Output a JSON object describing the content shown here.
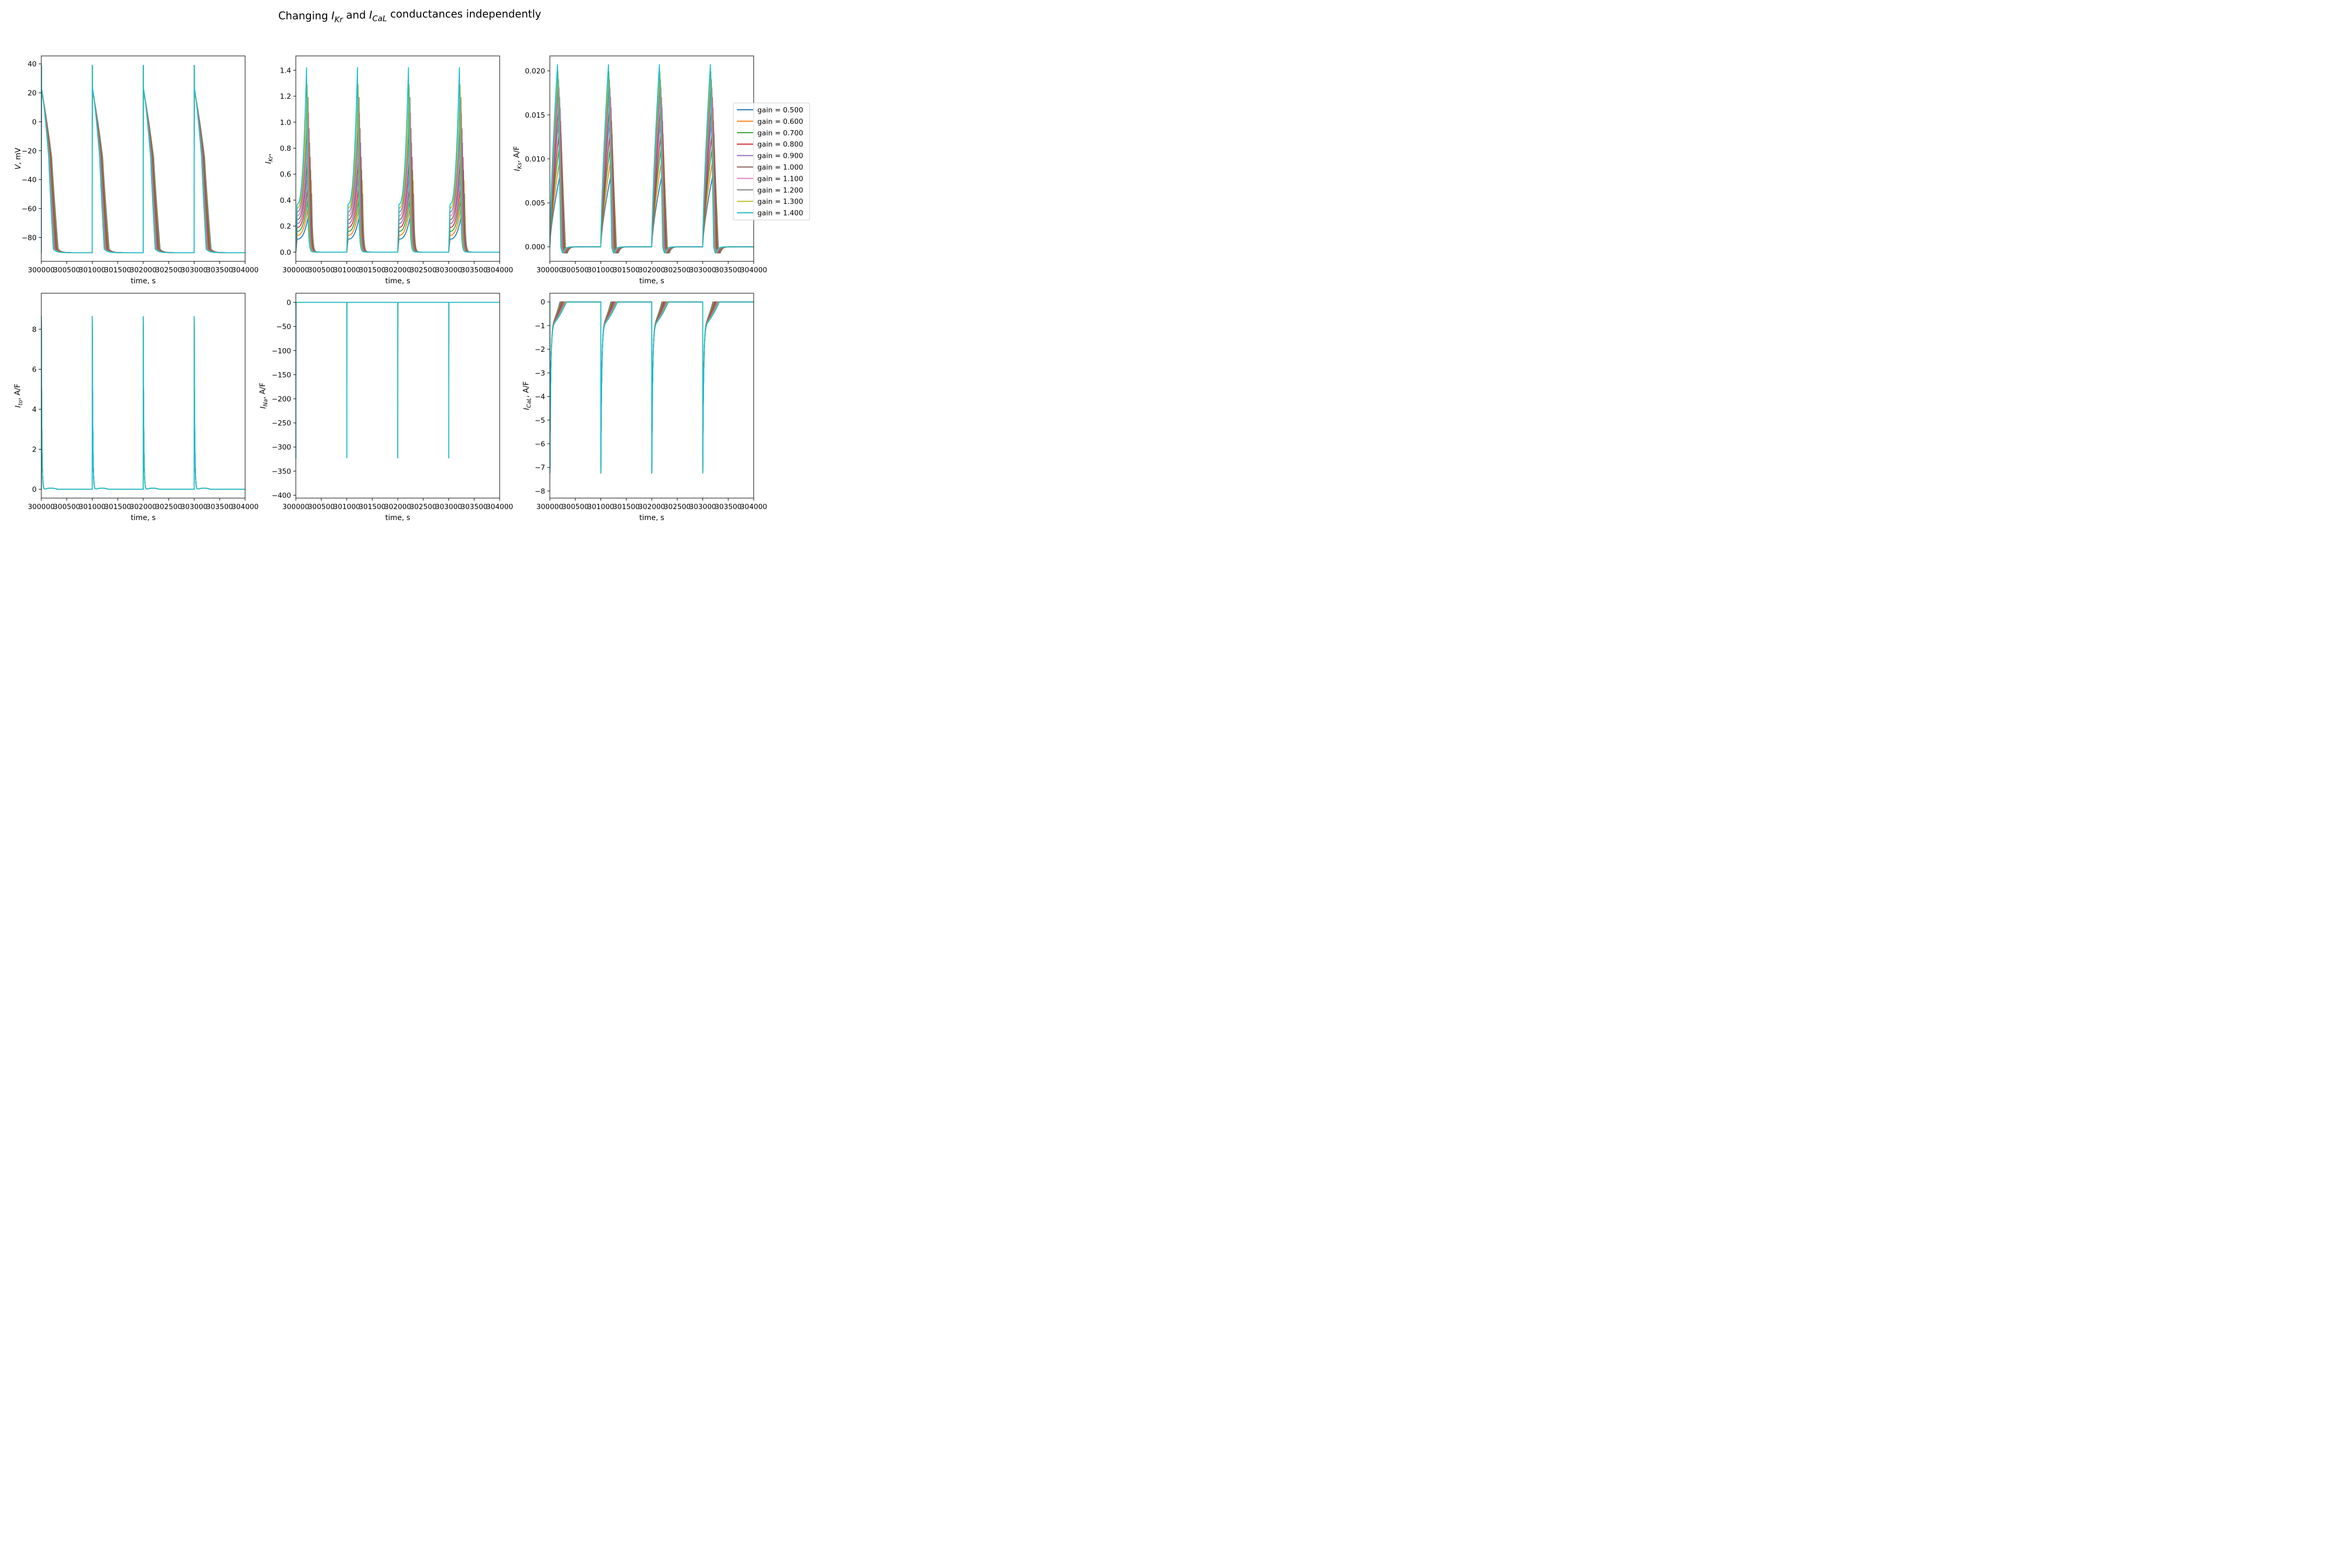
{
  "figure": {
    "title_parts": [
      "Changing ",
      "I",
      "Kr",
      " and ",
      "I",
      "CaL",
      " conductances independently"
    ]
  },
  "legend": {
    "entries": [
      "gain = 0.500",
      "gain = 0.600",
      "gain = 0.700",
      "gain = 0.800",
      "gain = 0.900",
      "gain = 1.000",
      "gain = 1.100",
      "gain = 1.200",
      "gain = 1.300",
      "gain = 1.400"
    ],
    "colors": [
      "#1f77b4",
      "#ff7f0e",
      "#2ca02c",
      "#d62728",
      "#9467bd",
      "#8c564b",
      "#e377c2",
      "#7f7f7f",
      "#bcbd22",
      "#17becf"
    ],
    "placement": "right of top-right panel"
  },
  "chart_data": [
    {
      "id": "V",
      "type": "line",
      "xlabel": "time, s",
      "ylabel_parts": [
        "V",
        "",
        ", mV"
      ],
      "xlim": [
        300000,
        304000
      ],
      "ylim": [
        -96.5,
        45.5
      ],
      "xticks": [
        300000,
        300500,
        301000,
        301500,
        302000,
        302500,
        303000,
        303500,
        304000
      ],
      "xtick_labels": [
        "300000",
        "300500",
        "301000",
        "301500",
        "302000",
        "302500",
        "303000",
        "303500",
        "304000"
      ],
      "yticks": [
        40,
        20,
        0,
        -20,
        -40,
        -60,
        -80
      ],
      "ytick_labels": [
        "40",
        "20",
        "0",
        "−20",
        "−40",
        "−60",
        "−80"
      ],
      "model": "ap",
      "series": [
        {
          "name": "gain = 0.500",
          "apd_ms": 330,
          "peak": 20
        },
        {
          "name": "gain = 0.600",
          "apd_ms": 318,
          "peak": 20.4
        },
        {
          "name": "gain = 0.700",
          "apd_ms": 306,
          "peak": 20.8
        },
        {
          "name": "gain = 0.800",
          "apd_ms": 294,
          "peak": 21.2
        },
        {
          "name": "gain = 0.900",
          "apd_ms": 283,
          "peak": 21.6
        },
        {
          "name": "gain = 1.000",
          "apd_ms": 272,
          "peak": 22
        },
        {
          "name": "gain = 1.100",
          "apd_ms": 262,
          "peak": 22.3
        },
        {
          "name": "gain = 1.200",
          "apd_ms": 252,
          "peak": 22.6
        },
        {
          "name": "gain = 1.300",
          "apd_ms": 243,
          "peak": 22.9
        },
        {
          "name": "gain = 1.400",
          "apd_ms": 235,
          "peak": 23
        }
      ],
      "spike_peak": 39,
      "rest": -90.5,
      "beat_starts": [
        300000,
        301000,
        302000,
        303000
      ]
    },
    {
      "id": "IKr",
      "type": "line",
      "xlabel": "time, s",
      "ylabel_parts": [
        "I",
        "Kr",
        ","
      ],
      "xlim": [
        300000,
        304000
      ],
      "ylim": [
        -0.071,
        1.51
      ],
      "xticks": [
        300000,
        300500,
        301000,
        301500,
        302000,
        302500,
        303000,
        303500,
        304000
      ],
      "xtick_labels": [
        "300000",
        "300500",
        "301000",
        "301500",
        "302000",
        "302500",
        "303000",
        "303500",
        "304000"
      ],
      "yticks": [
        0.0,
        0.2,
        0.4,
        0.6,
        0.8,
        1.0,
        1.2,
        1.4
      ],
      "ytick_labels": [
        "0.0",
        "0.2",
        "0.4",
        "0.6",
        "0.8",
        "1.0",
        "1.2",
        "1.4"
      ],
      "model": "ikr",
      "series": [
        {
          "name": "gain = 0.500",
          "peak": 0.45,
          "start": 0.1,
          "t_peak": 300310
        },
        {
          "name": "gain = 0.600",
          "peak": 0.55,
          "start": 0.13,
          "t_peak": 300300
        },
        {
          "name": "gain = 0.700",
          "peak": 0.63,
          "start": 0.16,
          "t_peak": 300290
        },
        {
          "name": "gain = 0.800",
          "peak": 0.73,
          "start": 0.19,
          "t_peak": 300280
        },
        {
          "name": "gain = 0.900",
          "peak": 0.84,
          "start": 0.22,
          "t_peak": 300270
        },
        {
          "name": "gain = 1.000",
          "peak": 0.95,
          "start": 0.25,
          "t_peak": 300260
        },
        {
          "name": "gain = 1.100",
          "peak": 1.07,
          "start": 0.28,
          "t_peak": 300250
        },
        {
          "name": "gain = 1.200",
          "peak": 1.19,
          "start": 0.31,
          "t_peak": 300240
        },
        {
          "name": "gain = 1.300",
          "peak": 1.3,
          "start": 0.34,
          "t_peak": 300225
        },
        {
          "name": "gain = 1.400",
          "peak": 1.42,
          "start": 0.37,
          "t_peak": 300210
        }
      ],
      "beat_starts": [
        300000,
        301000,
        302000,
        303000
      ]
    },
    {
      "id": "IKs",
      "type": "line",
      "xlabel": "time, s",
      "ylabel_parts": [
        "I",
        "Ks",
        ", A/F"
      ],
      "xlim": [
        300000,
        304000
      ],
      "ylim": [
        -0.00165,
        0.0217
      ],
      "xticks": [
        300000,
        300500,
        301000,
        301500,
        302000,
        302500,
        303000,
        303500,
        304000
      ],
      "xtick_labels": [
        "300000",
        "300500",
        "301000",
        "301500",
        "302000",
        "302500",
        "303000",
        "303500",
        "304000"
      ],
      "yticks": [
        0.0,
        0.005,
        0.01,
        0.015,
        0.02
      ],
      "ytick_labels": [
        "0.000",
        "0.005",
        "0.010",
        "0.015",
        "0.020"
      ],
      "model": "iks",
      "series": [
        {
          "name": "gain = 0.500",
          "peak": 0.0093,
          "t_peak": 300240
        },
        {
          "name": "gain = 0.600",
          "peak": 0.0111,
          "t_peak": 300230
        },
        {
          "name": "gain = 0.700",
          "peak": 0.0128,
          "t_peak": 300220
        },
        {
          "name": "gain = 0.800",
          "peak": 0.0143,
          "t_peak": 300210
        },
        {
          "name": "gain = 0.900",
          "peak": 0.0158,
          "t_peak": 300200
        },
        {
          "name": "gain = 1.000",
          "peak": 0.017,
          "t_peak": 300190
        },
        {
          "name": "gain = 1.100",
          "peak": 0.0181,
          "t_peak": 300180
        },
        {
          "name": "gain = 1.200",
          "peak": 0.019,
          "t_peak": 300170
        },
        {
          "name": "gain = 1.300",
          "peak": 0.0199,
          "t_peak": 300160
        },
        {
          "name": "gain = 1.400",
          "peak": 0.0207,
          "t_peak": 300150
        }
      ],
      "beat_starts": [
        300000,
        301000,
        302000,
        303000
      ]
    },
    {
      "id": "Ito",
      "type": "line",
      "xlabel": "time, s",
      "ylabel_parts": [
        "I",
        "to",
        ", A/F"
      ],
      "xlim": [
        300000,
        304000
      ],
      "ylim": [
        -0.44,
        9.8
      ],
      "xticks": [
        300000,
        300500,
        301000,
        301500,
        302000,
        302500,
        303000,
        303500,
        304000
      ],
      "xtick_labels": [
        "300000",
        "300500",
        "301000",
        "301500",
        "302000",
        "302500",
        "303000",
        "303500",
        "304000"
      ],
      "yticks": [
        0,
        2,
        4,
        6,
        8
      ],
      "ytick_labels": [
        "0",
        "2",
        "4",
        "6",
        "8"
      ],
      "model": "ito",
      "peak": 8.65,
      "beat_starts": [
        300000,
        301000,
        302000,
        303000
      ]
    },
    {
      "id": "INa",
      "type": "line",
      "xlabel": "time, s",
      "ylabel_parts": [
        "I",
        "Na",
        ", A/F"
      ],
      "xlim": [
        300000,
        304000
      ],
      "ylim": [
        -406,
        19
      ],
      "xticks": [
        300000,
        300500,
        301000,
        301500,
        302000,
        302500,
        303000,
        303500,
        304000
      ],
      "xtick_labels": [
        "300000",
        "300500",
        "301000",
        "301500",
        "302000",
        "302500",
        "303000",
        "303500",
        "304000"
      ],
      "yticks": [
        0,
        -50,
        -100,
        -150,
        -200,
        -250,
        -300,
        -350,
        -400
      ],
      "ytick_labels": [
        "0",
        "−50",
        "−100",
        "−150",
        "−200",
        "−250",
        "−300",
        "−350",
        "−400"
      ],
      "model": "ina",
      "peak": -387,
      "beat_starts": [
        300000,
        301000,
        302000,
        303000
      ]
    },
    {
      "id": "ICaL",
      "type": "line",
      "xlabel": "time, s",
      "ylabel_parts": [
        "I",
        "CaL",
        ", A/F"
      ],
      "xlim": [
        300000,
        304000
      ],
      "ylim": [
        -8.3,
        0.37
      ],
      "xticks": [
        300000,
        300500,
        301000,
        301500,
        302000,
        302500,
        303000,
        303500,
        304000
      ],
      "xtick_labels": [
        "300000",
        "300500",
        "301000",
        "301500",
        "302000",
        "302500",
        "303000",
        "303500",
        "304000"
      ],
      "yticks": [
        0,
        -1,
        -2,
        -3,
        -4,
        -5,
        -6,
        -7,
        -8
      ],
      "ytick_labels": [
        "0",
        "−1",
        "−2",
        "−3",
        "−4",
        "−5",
        "−6",
        "−7",
        "−8"
      ],
      "model": "ical",
      "peak": -7.2,
      "beat_starts": [
        300000,
        301000,
        302000,
        303000
      ]
    }
  ]
}
